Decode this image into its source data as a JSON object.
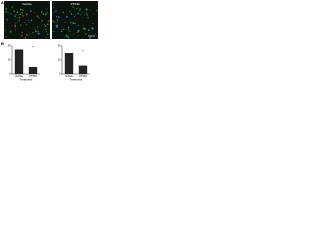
{
  "figure": {
    "panel_a": {
      "letter": "A",
      "labels": [
        "Vehicle",
        "PT630"
      ]
    },
    "panel_b": {
      "letter": "B"
    }
  },
  "chart_data": [
    {
      "type": "bar",
      "categories": [
        "Vehicle",
        "PT630"
      ],
      "values": [
        35,
        10
      ],
      "color": "#222222",
      "ylim": [
        0,
        40
      ],
      "yticks": [
        0,
        20,
        40
      ],
      "x_label": "Treatment",
      "annotation": "*"
    },
    {
      "type": "bar",
      "categories": [
        "Vehicle",
        "PT630"
      ],
      "values": [
        30,
        12
      ],
      "color": "#222222",
      "ylim": [
        0,
        40
      ],
      "yticks": [
        0,
        20,
        40
      ],
      "x_label": "Treatment",
      "annotation": "*"
    }
  ]
}
